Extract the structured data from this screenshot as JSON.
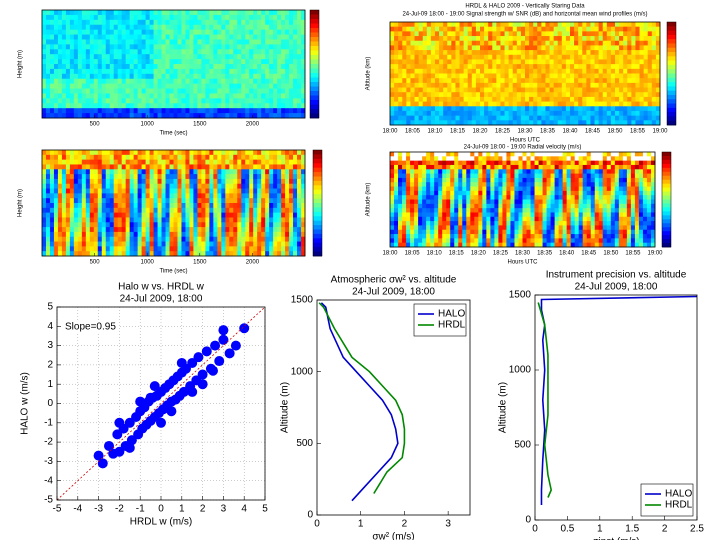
{
  "chart_data": [
    {
      "type": "heatmap",
      "xlabel": "Time (sec)",
      "ylabel": "Height (m)",
      "xlim": [
        0,
        2500
      ],
      "xticks": [
        500,
        1000,
        1500,
        2000
      ]
    },
    {
      "type": "heatmap",
      "title": "HRDL & HALO 2009 - Vertically Staring Data",
      "subtitle": "24-Jul-09 18:00 - 19:00 Signal strength w/ SNR (dB) and horizontal mean wind profiles (m/s)",
      "xlabel": "Hours UTC",
      "ylabel": "Altitude (km)",
      "categories": [
        "18:00",
        "18:05",
        "18:10",
        "18:15",
        "18:20",
        "18:25",
        "18:30",
        "18:35",
        "18:40",
        "18:45",
        "18:50",
        "18:55",
        "19:00"
      ]
    },
    {
      "type": "heatmap",
      "xlabel": "Time (sec)",
      "ylabel": "Height (m)",
      "xlim": [
        0,
        2500
      ],
      "xticks": [
        500,
        1000,
        1500,
        2000
      ]
    },
    {
      "type": "heatmap",
      "title": "24-Jul-09 18:00 - 19:00 Radial velocity (m/s)",
      "xlabel": "Hours UTC",
      "ylabel": "Altitude (km)",
      "categories": [
        "18:00",
        "18:05",
        "18:10",
        "18:15",
        "18:20",
        "18:25",
        "18:30",
        "18:35",
        "18:40",
        "18:45",
        "18:50",
        "18:55",
        "19:00"
      ]
    },
    {
      "type": "scatter",
      "title": "Halo w vs. HRDL w",
      "subtitle": "24-Jul 2009, 18:00",
      "xlabel": "HRDL w (m/s)",
      "ylabel": "HALO w (m/s)",
      "annotation": "Slope=0.95",
      "color": "#0000ff",
      "grid": true,
      "xlim": [
        -5,
        5
      ],
      "ylim": [
        -5,
        5
      ],
      "xticks": [
        -5,
        -4,
        -3,
        -2,
        -1,
        0,
        1,
        2,
        3,
        4,
        5
      ],
      "yticks": [
        -5,
        -4,
        -3,
        -2,
        -1,
        0,
        1,
        2,
        3,
        4,
        5
      ],
      "x": [
        -3.0,
        -2.8,
        -2.5,
        -2.3,
        -2.1,
        -2.0,
        -1.8,
        -1.7,
        -1.5,
        -1.4,
        -1.2,
        -1.1,
        -1.0,
        -0.9,
        -0.8,
        -0.7,
        -0.6,
        -0.5,
        -0.4,
        -0.3,
        -0.2,
        -0.1,
        0.0,
        0.1,
        0.2,
        0.3,
        0.4,
        0.5,
        0.6,
        0.7,
        0.8,
        0.9,
        1.0,
        1.1,
        1.2,
        1.4,
        1.5,
        1.7,
        1.8,
        2.0,
        2.2,
        2.4,
        2.6,
        2.8,
        3.0,
        3.3,
        3.6,
        4.0,
        -1.5,
        -0.5,
        0.5,
        1.5,
        2.5,
        -2.0,
        0.0,
        1.0,
        -1.0,
        2.0,
        3.0,
        -0.3
      ],
      "values": [
        -2.7,
        -3.1,
        -2.2,
        -2.6,
        -1.6,
        -2.5,
        -1.3,
        -2.2,
        -1.0,
        -1.9,
        -0.7,
        -1.6,
        -0.4,
        -1.3,
        -0.2,
        -1.1,
        0.1,
        -0.9,
        0.3,
        -0.7,
        0.4,
        -0.5,
        0.6,
        -0.3,
        0.8,
        -0.1,
        1.0,
        0.1,
        1.2,
        0.2,
        1.4,
        0.4,
        1.6,
        0.6,
        1.8,
        0.9,
        2.1,
        1.2,
        2.4,
        1.5,
        2.7,
        1.8,
        3.0,
        2.2,
        3.3,
        2.6,
        3.0,
        3.9,
        -2.3,
        0.3,
        -0.4,
        0.6,
        1.7,
        -1.0,
        -1.0,
        2.1,
        0.1,
        1.0,
        3.8,
        0.9
      ]
    },
    {
      "type": "line",
      "title": "Atmospheric σw² vs. altitude",
      "subtitle": "24-Jul 2009, 18:00",
      "xlabel": "σw² (m/s)",
      "ylabel": "Altitude (m)",
      "legend": "upper right",
      "xlim": [
        0,
        3.5
      ],
      "ylim": [
        0,
        1500
      ],
      "xticks": [
        0,
        1,
        2,
        3
      ],
      "yticks": [
        0,
        500,
        1000,
        1500
      ],
      "series": [
        {
          "name": "HALO",
          "color": "#0000cc",
          "y": [
            1480,
            1450,
            1300,
            1100,
            1000,
            900,
            800,
            700,
            600,
            500,
            400,
            300,
            200,
            100
          ],
          "values": [
            0.1,
            0.2,
            0.3,
            0.6,
            0.9,
            1.2,
            1.5,
            1.7,
            1.8,
            1.85,
            1.7,
            1.4,
            1.1,
            0.8
          ]
        },
        {
          "name": "HRDL",
          "color": "#008800",
          "y": [
            1480,
            1450,
            1300,
            1100,
            1000,
            900,
            800,
            700,
            600,
            500,
            400,
            300,
            200,
            150
          ],
          "values": [
            0.05,
            0.15,
            0.4,
            0.8,
            1.2,
            1.5,
            1.8,
            1.95,
            2.0,
            2.0,
            1.95,
            1.6,
            1.4,
            1.3
          ]
        }
      ]
    },
    {
      "type": "line",
      "title": "Instrument precision vs. altitude",
      "subtitle": "24-Jul 2009, 18:00",
      "xlabel": "σinst (m/s)",
      "ylabel": "Altitude (m)",
      "legend": "lower right",
      "xlim": [
        0,
        2.5
      ],
      "ylim": [
        0,
        1500
      ],
      "xticks": [
        0,
        0.5,
        1,
        1.5,
        2,
        2.5
      ],
      "yticks": [
        0,
        500,
        1000,
        1500
      ],
      "series": [
        {
          "name": "HALO",
          "color": "#0000cc",
          "y": [
            1490,
            1470,
            1400,
            1300,
            1200,
            1000,
            800,
            600,
            400,
            200,
            100
          ],
          "values": [
            2.5,
            0.1,
            0.1,
            0.15,
            0.12,
            0.15,
            0.12,
            0.15,
            0.12,
            0.1,
            0.1
          ]
        },
        {
          "name": "HRDL",
          "color": "#008800",
          "y": [
            1450,
            1300,
            1100,
            900,
            700,
            500,
            300,
            200,
            150
          ],
          "values": [
            0.05,
            0.15,
            0.2,
            0.2,
            0.2,
            0.15,
            0.2,
            0.25,
            0.2
          ]
        }
      ]
    }
  ]
}
